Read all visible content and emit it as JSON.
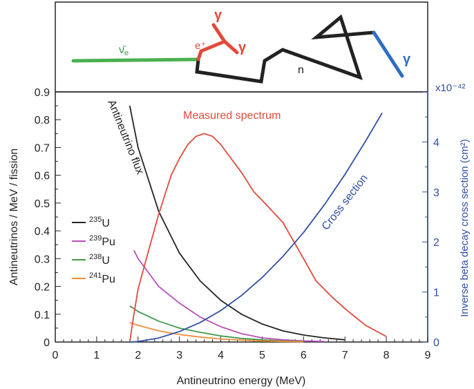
{
  "figure": {
    "inset": {
      "antineutrino_label": "ν̄",
      "antineutrino_sub": "e",
      "positron_label": "e⁺",
      "neutron_label": "n",
      "gamma_label": "γ"
    }
  },
  "chart_data": {
    "type": "line",
    "xlabel": "Antineutrino energy (MeV)",
    "ylabel": "Antineutrinos / MeV / fission",
    "y2label": "Inverse beta decay cross section (cm²)",
    "y2_multiplier": "x10⁻⁴²",
    "xlim": [
      0,
      9
    ],
    "ylim": [
      0,
      0.9
    ],
    "y2lim": [
      0,
      5
    ],
    "x_ticks": [
      "0",
      "1",
      "2",
      "3",
      "4",
      "5",
      "6",
      "7",
      "8",
      "9"
    ],
    "y_ticks": [
      "0",
      "0.1",
      "0.2",
      "0.3",
      "0.4",
      "0.5",
      "0.6",
      "0.7",
      "0.8",
      "0.9"
    ],
    "y2_ticks": [
      "0",
      "1",
      "2",
      "3",
      "4"
    ],
    "grid": false,
    "legend_position": "left",
    "legend": [
      {
        "sup": "235",
        "el": "U",
        "color": "#222222"
      },
      {
        "sup": "239",
        "el": "Pu",
        "color": "#b94fb8"
      },
      {
        "sup": "238",
        "el": "U",
        "color": "#3f9a4a"
      },
      {
        "sup": "241",
        "el": "Pu",
        "color": "#f08c3c"
      }
    ],
    "annotations": {
      "flux": "Antineutrino flux",
      "measured": "Measured spectrum",
      "cross": "Cross section"
    },
    "series": [
      {
        "name": "235U",
        "axis": "left",
        "color": "#222222",
        "x": [
          1.8,
          2.0,
          2.5,
          3.0,
          3.5,
          4.0,
          4.5,
          5.0,
          5.5,
          6.0,
          6.5,
          7.0
        ],
        "y": [
          0.85,
          0.7,
          0.47,
          0.32,
          0.22,
          0.15,
          0.1,
          0.065,
          0.04,
          0.025,
          0.015,
          0.008
        ]
      },
      {
        "name": "239Pu",
        "axis": "left",
        "color": "#b94fb8",
        "x": [
          1.9,
          2.0,
          2.5,
          3.0,
          3.5,
          4.0,
          4.5,
          5.0,
          5.5,
          6.0,
          6.5
        ],
        "y": [
          0.33,
          0.3,
          0.2,
          0.14,
          0.09,
          0.055,
          0.03,
          0.015,
          0.008,
          0.004,
          0.002
        ]
      },
      {
        "name": "238U",
        "axis": "left",
        "color": "#3f9a4a",
        "x": [
          1.8,
          2.0,
          2.5,
          3.0,
          3.5,
          4.0,
          4.5,
          5.0,
          5.5,
          6.0
        ],
        "y": [
          0.13,
          0.11,
          0.075,
          0.05,
          0.035,
          0.022,
          0.013,
          0.008,
          0.004,
          0.002
        ]
      },
      {
        "name": "241Pu",
        "axis": "left",
        "color": "#f08c3c",
        "x": [
          1.8,
          2.0,
          2.5,
          3.0,
          3.5,
          4.0,
          4.5,
          5.0,
          5.5,
          6.0
        ],
        "y": [
          0.07,
          0.06,
          0.04,
          0.027,
          0.018,
          0.011,
          0.007,
          0.004,
          0.002,
          0.001
        ]
      },
      {
        "name": "Measured spectrum",
        "axis": "left",
        "color": "#e2493a",
        "x": [
          1.8,
          1.9,
          2.0,
          2.2,
          2.5,
          2.8,
          3.0,
          3.2,
          3.4,
          3.6,
          3.8,
          4.0,
          4.2,
          4.5,
          4.8,
          5.0,
          5.5,
          6.0,
          6.3,
          6.7,
          7.0,
          7.5,
          8.0
        ],
        "y": [
          0.0,
          0.1,
          0.19,
          0.3,
          0.46,
          0.6,
          0.66,
          0.71,
          0.74,
          0.75,
          0.74,
          0.71,
          0.67,
          0.61,
          0.54,
          0.51,
          0.43,
          0.3,
          0.22,
          0.16,
          0.12,
          0.06,
          0.02
        ]
      },
      {
        "name": "Cross section",
        "axis": "right",
        "color": "#2f4ea3",
        "x": [
          1.8,
          2.0,
          2.5,
          3.0,
          3.5,
          4.0,
          4.5,
          5.0,
          5.5,
          6.0,
          6.5,
          7.0,
          7.5,
          7.9
        ],
        "y": [
          0.0,
          0.01,
          0.08,
          0.21,
          0.39,
          0.63,
          0.93,
          1.29,
          1.71,
          2.19,
          2.74,
          3.35,
          4.02,
          4.58
        ]
      }
    ]
  }
}
